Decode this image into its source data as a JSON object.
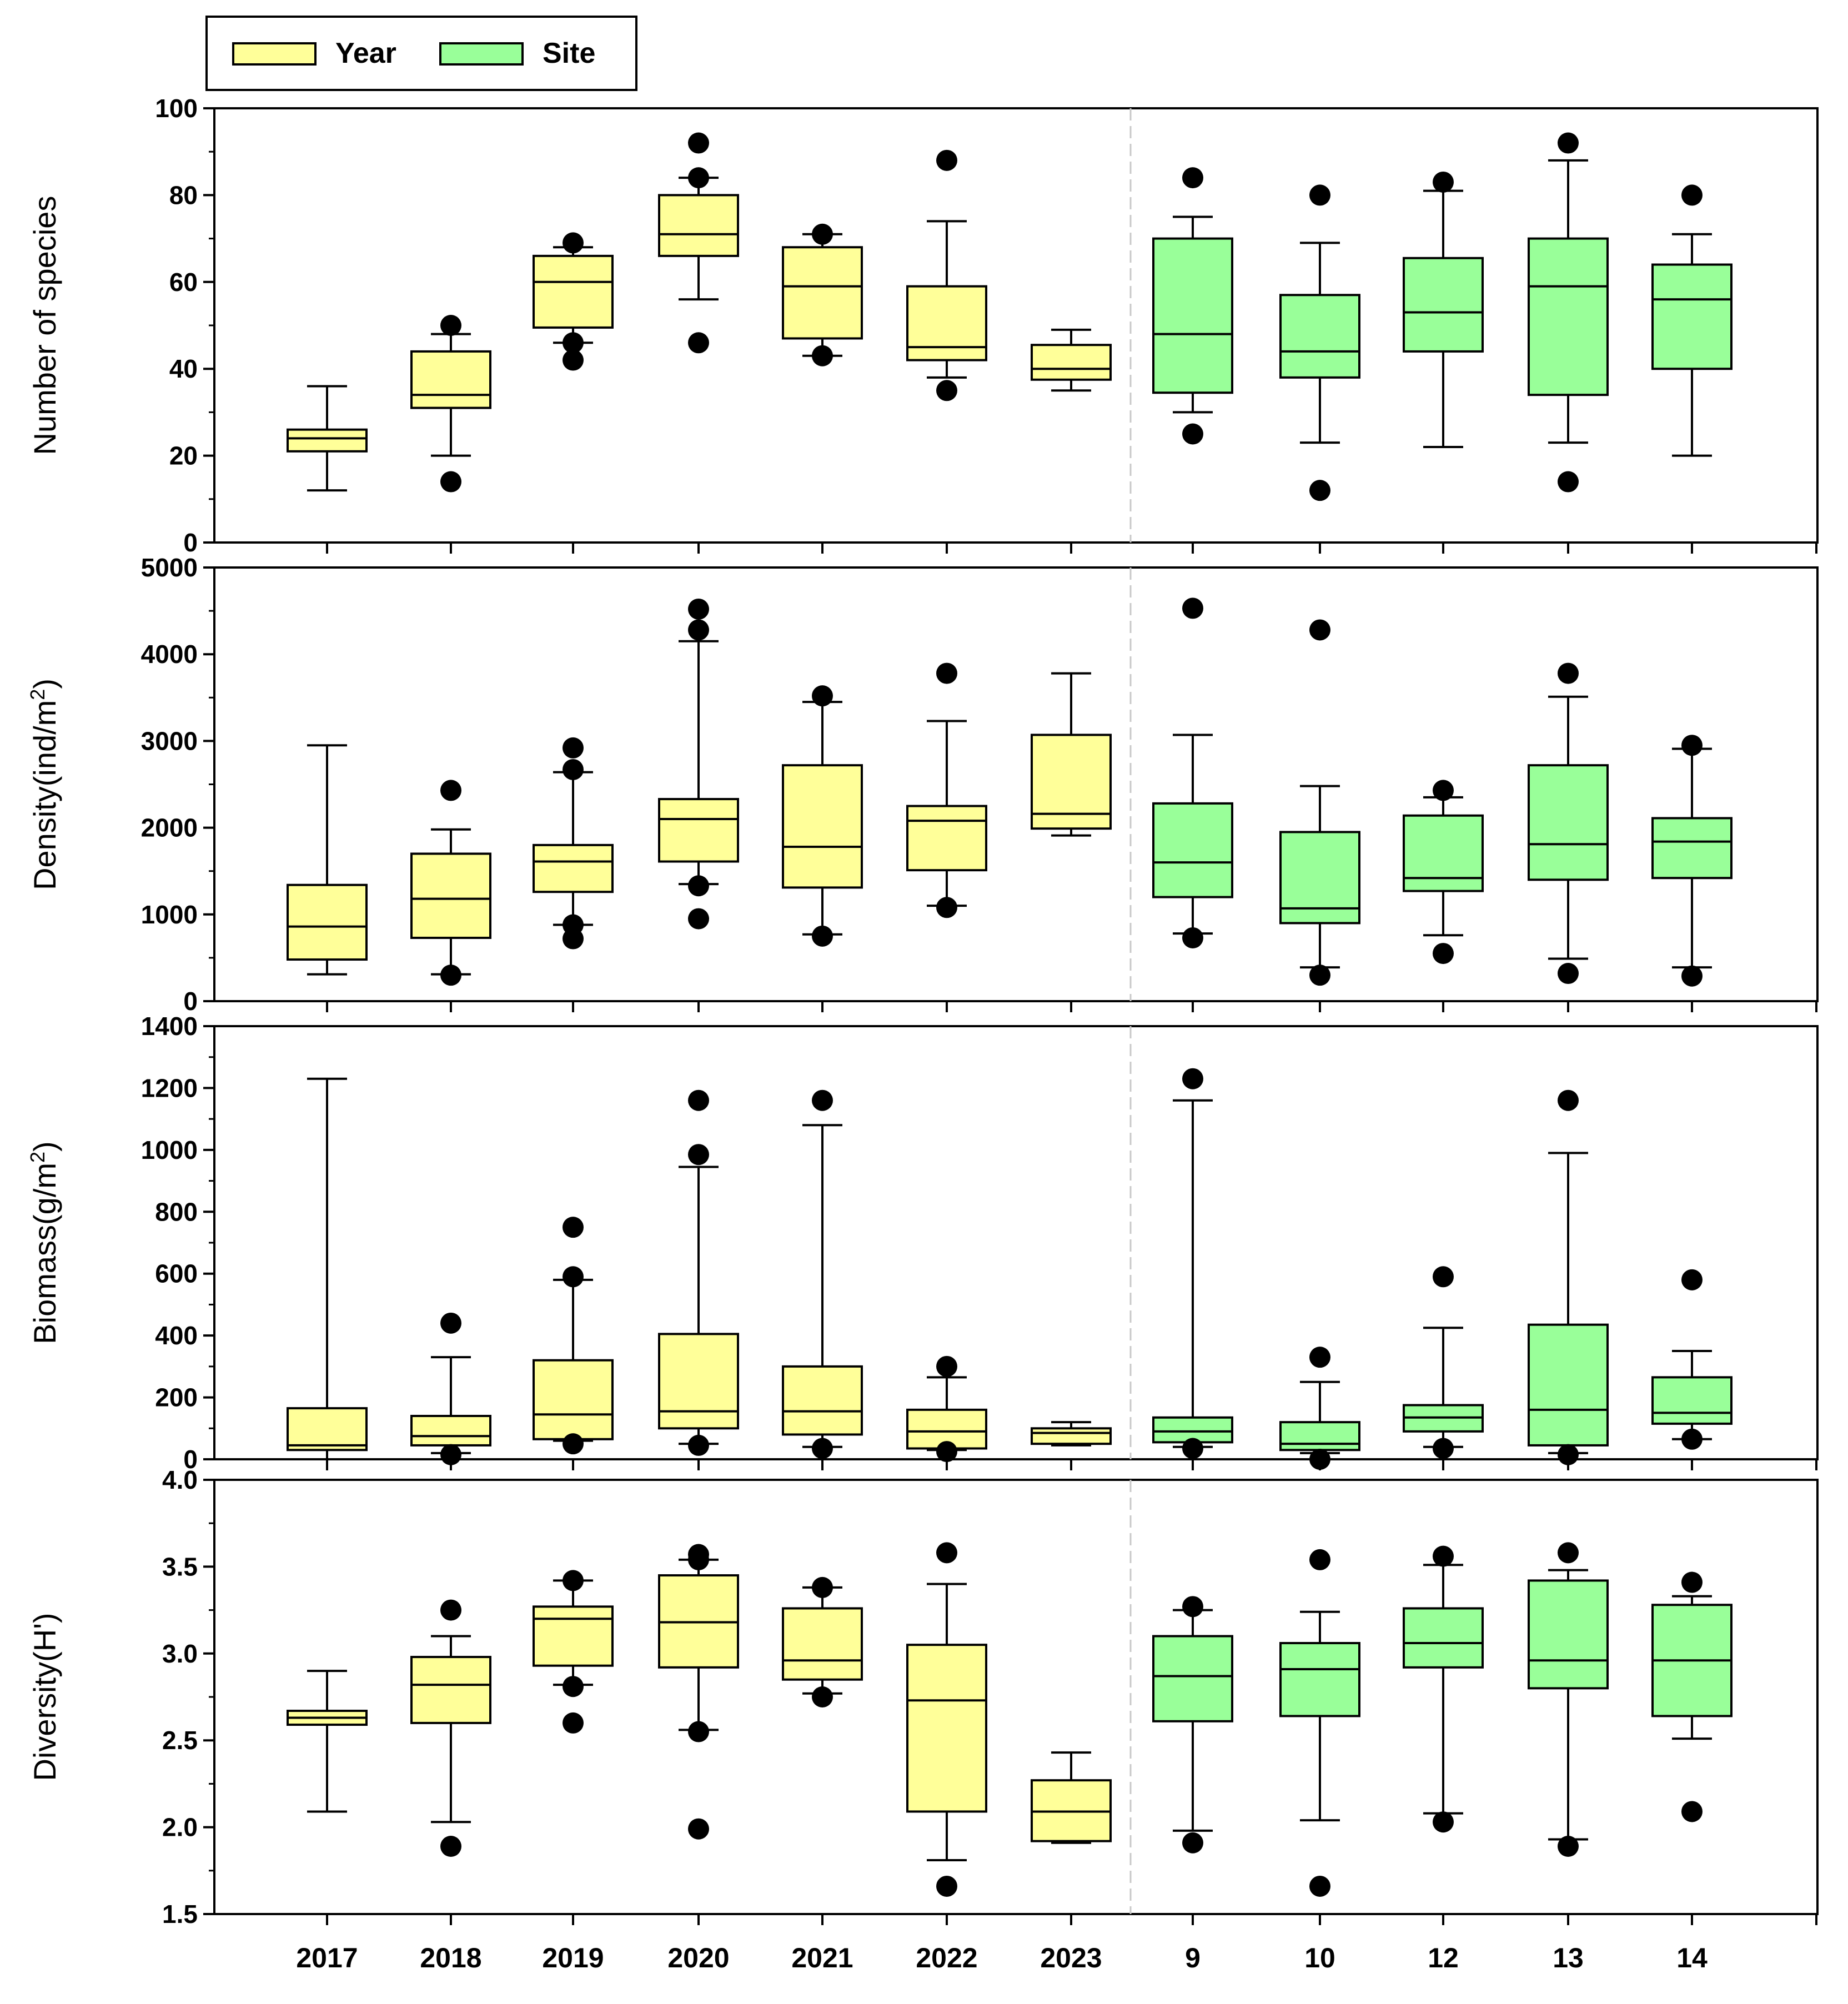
{
  "chart_data": {
    "type": "box",
    "legend": {
      "placement": "top-left",
      "entries": [
        {
          "name": "Year",
          "color": "#FFFF99"
        },
        {
          "name": "Site",
          "color": "#99FF99"
        }
      ]
    },
    "groups": {
      "Year": [
        "2017",
        "2018",
        "2019",
        "2020",
        "2021",
        "2022",
        "2023"
      ],
      "Site": [
        "9",
        "10",
        "12",
        "13",
        "14"
      ]
    },
    "categories": [
      "2017",
      "2018",
      "2019",
      "2020",
      "2021",
      "2022",
      "2023",
      "9",
      "10",
      "12",
      "13",
      "14"
    ],
    "panels": [
      {
        "ylabel": "Number of species",
        "ylim": [
          0,
          100
        ],
        "yticks": [
          "0",
          "20",
          "40",
          "60",
          "80",
          "100"
        ],
        "boxes": [
          {
            "min": 12,
            "q1": 21,
            "median": 24,
            "q3": 26,
            "max": 36,
            "outliers": []
          },
          {
            "min": 20,
            "q1": 31,
            "median": 34,
            "q3": 44,
            "max": 48,
            "outliers": [
              14,
              50
            ]
          },
          {
            "min": 46,
            "q1": 49.5,
            "median": 60,
            "q3": 66,
            "max": 68,
            "outliers": [
              42,
              46,
              69
            ]
          },
          {
            "min": 56,
            "q1": 66,
            "median": 71,
            "q3": 80,
            "max": 84,
            "outliers": [
              46,
              84,
              92
            ]
          },
          {
            "min": 43,
            "q1": 47,
            "median": 59,
            "q3": 68,
            "max": 71,
            "outliers": [
              43,
              71
            ]
          },
          {
            "min": 38,
            "q1": 42,
            "median": 45,
            "q3": 59,
            "max": 74,
            "outliers": [
              35,
              88
            ]
          },
          {
            "min": 35,
            "q1": 37.5,
            "median": 40,
            "q3": 45.5,
            "max": 49,
            "outliers": []
          },
          {
            "min": 30,
            "q1": 34.5,
            "median": 48,
            "q3": 70,
            "max": 75,
            "outliers": [
              25,
              84
            ]
          },
          {
            "min": 23,
            "q1": 38,
            "median": 44,
            "q3": 57,
            "max": 69,
            "outliers": [
              12,
              80
            ]
          },
          {
            "min": 22,
            "q1": 44,
            "median": 53,
            "q3": 65.5,
            "max": 81,
            "outliers": [
              83
            ]
          },
          {
            "min": 23,
            "q1": 34,
            "median": 59,
            "q3": 70,
            "max": 88,
            "outliers": [
              14,
              92
            ]
          },
          {
            "min": 20,
            "q1": 40,
            "median": 56,
            "q3": 64,
            "max": 71,
            "outliers": [
              80
            ]
          }
        ]
      },
      {
        "ylabel": "Density(ind/m",
        "ylabel_sup": "2",
        "ylabel_end": ")",
        "ylim": [
          0,
          5000
        ],
        "yticks": [
          "0",
          "1000",
          "2000",
          "3000",
          "4000",
          "5000"
        ],
        "boxes": [
          {
            "min": 310,
            "q1": 480,
            "median": 860,
            "q3": 1340,
            "max": 2950,
            "outliers": []
          },
          {
            "min": 310,
            "q1": 730,
            "median": 1180,
            "q3": 1700,
            "max": 1980,
            "outliers": [
              300,
              2430
            ]
          },
          {
            "min": 880,
            "q1": 1260,
            "median": 1610,
            "q3": 1800,
            "max": 2640,
            "outliers": [
              720,
              880,
              2670,
              2920
            ]
          },
          {
            "min": 1350,
            "q1": 1610,
            "median": 2100,
            "q3": 2330,
            "max": 4150,
            "outliers": [
              950,
              1330,
              4280,
              4520
            ]
          },
          {
            "min": 770,
            "q1": 1310,
            "median": 1780,
            "q3": 2720,
            "max": 3450,
            "outliers": [
              750,
              3520
            ]
          },
          {
            "min": 1100,
            "q1": 1510,
            "median": 2080,
            "q3": 2250,
            "max": 3230,
            "outliers": [
              1080,
              3780
            ]
          },
          {
            "min": 1910,
            "q1": 1990,
            "median": 2160,
            "q3": 3070,
            "max": 3780,
            "outliers": []
          },
          {
            "min": 780,
            "q1": 1200,
            "median": 1600,
            "q3": 2280,
            "max": 3070,
            "outliers": [
              730,
              4530
            ]
          },
          {
            "min": 390,
            "q1": 900,
            "median": 1070,
            "q3": 1950,
            "max": 2480,
            "outliers": [
              300,
              4280
            ]
          },
          {
            "min": 760,
            "q1": 1270,
            "median": 1420,
            "q3": 2140,
            "max": 2350,
            "outliers": [
              550,
              2430
            ]
          },
          {
            "min": 490,
            "q1": 1400,
            "median": 1810,
            "q3": 2720,
            "max": 3510,
            "outliers": [
              320,
              3780
            ]
          },
          {
            "min": 390,
            "q1": 1420,
            "median": 1840,
            "q3": 2110,
            "max": 2910,
            "outliers": [
              290,
              2950
            ]
          }
        ]
      },
      {
        "ylabel": "Biomass(g/m",
        "ylabel_sup": "2",
        "ylabel_end": ")",
        "ylim": [
          0,
          1400
        ],
        "yticks": [
          "0",
          "200",
          "400",
          "600",
          "800",
          "1000",
          "1200",
          "1400"
        ],
        "boxes": [
          {
            "min": 0,
            "q1": 30,
            "median": 45,
            "q3": 165,
            "max": 1230,
            "outliers": []
          },
          {
            "min": 20,
            "q1": 45,
            "median": 75,
            "q3": 140,
            "max": 330,
            "outliers": [
              15,
              440
            ]
          },
          {
            "min": 60,
            "q1": 65,
            "median": 145,
            "q3": 320,
            "max": 580,
            "outliers": [
              50,
              590,
              750
            ]
          },
          {
            "min": 50,
            "q1": 100,
            "median": 155,
            "q3": 405,
            "max": 945,
            "outliers": [
              45,
              985,
              1160
            ]
          },
          {
            "min": 40,
            "q1": 80,
            "median": 155,
            "q3": 300,
            "max": 1080,
            "outliers": [
              35,
              1160
            ]
          },
          {
            "min": 30,
            "q1": 35,
            "median": 90,
            "q3": 160,
            "max": 265,
            "outliers": [
              25,
              300
            ]
          },
          {
            "min": 45,
            "q1": 50,
            "median": 85,
            "q3": 100,
            "max": 120,
            "outliers": []
          },
          {
            "min": 40,
            "q1": 55,
            "median": 90,
            "q3": 135,
            "max": 1160,
            "outliers": [
              35,
              1230
            ]
          },
          {
            "min": 20,
            "q1": 30,
            "median": 50,
            "q3": 120,
            "max": 250,
            "outliers": [
              0,
              330
            ]
          },
          {
            "min": 40,
            "q1": 90,
            "median": 135,
            "q3": 175,
            "max": 425,
            "outliers": [
              35,
              590
            ]
          },
          {
            "min": 20,
            "q1": 45,
            "median": 160,
            "q3": 435,
            "max": 990,
            "outliers": [
              15,
              1160
            ]
          },
          {
            "min": 65,
            "q1": 115,
            "median": 150,
            "q3": 265,
            "max": 350,
            "outliers": [
              65,
              580
            ]
          }
        ]
      },
      {
        "ylabel": "Diversity(H')",
        "ylim": [
          1.5,
          4.0
        ],
        "yticks": [
          "1.5",
          "2.0",
          "2.5",
          "3.0",
          "3.5",
          "4.0"
        ],
        "boxes": [
          {
            "min": 2.09,
            "q1": 2.59,
            "median": 2.63,
            "q3": 2.67,
            "max": 2.9,
            "outliers": []
          },
          {
            "min": 2.03,
            "q1": 2.6,
            "median": 2.82,
            "q3": 2.98,
            "max": 3.1,
            "outliers": [
              1.89,
              3.25
            ]
          },
          {
            "min": 2.82,
            "q1": 2.93,
            "median": 3.2,
            "q3": 3.27,
            "max": 3.42,
            "outliers": [
              2.6,
              2.81,
              3.42
            ]
          },
          {
            "min": 2.56,
            "q1": 2.92,
            "median": 3.18,
            "q3": 3.45,
            "max": 3.54,
            "outliers": [
              1.99,
              2.55,
              3.54,
              3.57
            ]
          },
          {
            "min": 2.77,
            "q1": 2.85,
            "median": 2.96,
            "q3": 3.26,
            "max": 3.38,
            "outliers": [
              2.75,
              3.38
            ]
          },
          {
            "min": 1.81,
            "q1": 2.09,
            "median": 2.73,
            "q3": 3.05,
            "max": 3.4,
            "outliers": [
              1.66,
              3.58
            ]
          },
          {
            "min": 1.91,
            "q1": 1.92,
            "median": 2.09,
            "q3": 2.27,
            "max": 2.43,
            "outliers": []
          },
          {
            "min": 1.98,
            "q1": 2.61,
            "median": 2.87,
            "q3": 3.1,
            "max": 3.25,
            "outliers": [
              1.91,
              3.27
            ]
          },
          {
            "min": 2.04,
            "q1": 2.64,
            "median": 2.91,
            "q3": 3.06,
            "max": 3.24,
            "outliers": [
              1.66,
              3.54
            ]
          },
          {
            "min": 2.08,
            "q1": 2.92,
            "median": 3.06,
            "q3": 3.26,
            "max": 3.51,
            "outliers": [
              2.03,
              3.56
            ]
          },
          {
            "min": 1.93,
            "q1": 2.8,
            "median": 2.96,
            "q3": 3.42,
            "max": 3.48,
            "outliers": [
              1.89,
              3.58
            ]
          },
          {
            "min": 2.51,
            "q1": 2.64,
            "median": 2.96,
            "q3": 3.28,
            "max": 3.33,
            "outliers": [
              2.09,
              3.41
            ]
          }
        ]
      }
    ]
  }
}
